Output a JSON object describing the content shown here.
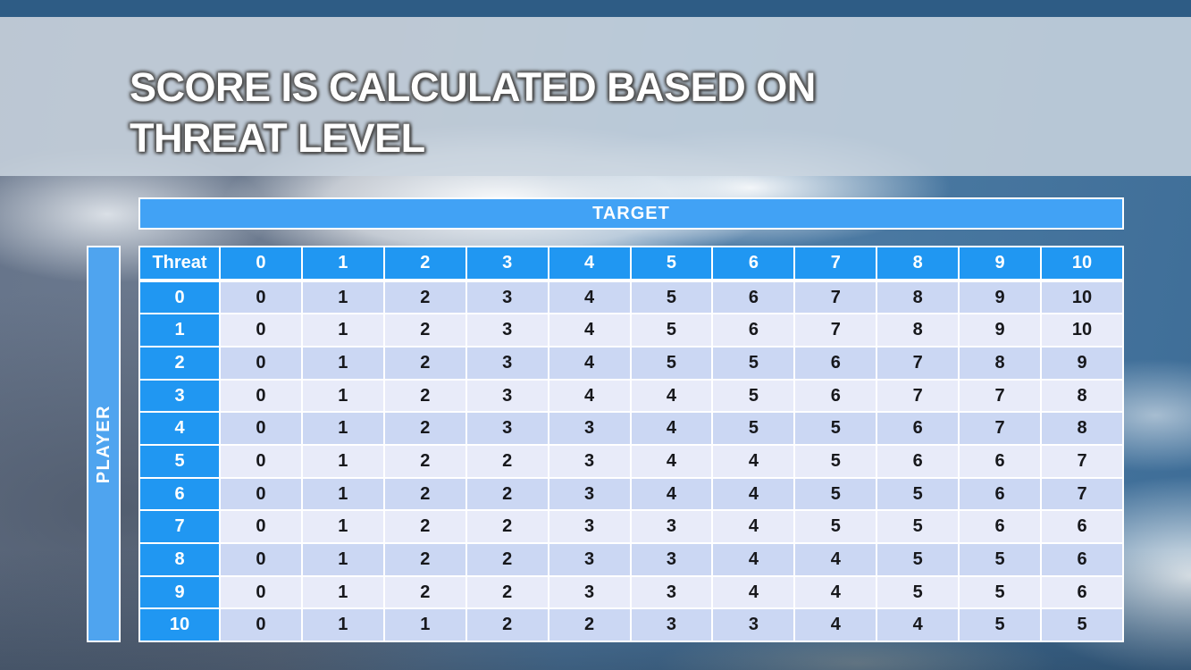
{
  "slide": {
    "title_line1": "SCORE IS CALCULATED BASED ON",
    "title_line2": "THREAT LEVEL"
  },
  "chart_data": {
    "type": "table",
    "title": "Score is calculated based on threat level",
    "x_axis_label": "TARGET",
    "y_axis_label": "PLAYER",
    "corner_label": "Threat",
    "column_headers": [
      "0",
      "1",
      "2",
      "3",
      "4",
      "5",
      "6",
      "7",
      "8",
      "9",
      "10"
    ],
    "row_headers": [
      "0",
      "1",
      "2",
      "3",
      "4",
      "5",
      "6",
      "7",
      "8",
      "9",
      "10"
    ],
    "values": [
      [
        0,
        1,
        2,
        3,
        4,
        5,
        6,
        7,
        8,
        9,
        10
      ],
      [
        0,
        1,
        2,
        3,
        4,
        5,
        6,
        7,
        8,
        9,
        10
      ],
      [
        0,
        1,
        2,
        3,
        4,
        5,
        5,
        6,
        7,
        8,
        9
      ],
      [
        0,
        1,
        2,
        3,
        4,
        4,
        5,
        6,
        7,
        7,
        8
      ],
      [
        0,
        1,
        2,
        3,
        3,
        4,
        5,
        5,
        6,
        7,
        8
      ],
      [
        0,
        1,
        2,
        2,
        3,
        4,
        4,
        5,
        6,
        6,
        7
      ],
      [
        0,
        1,
        2,
        2,
        3,
        4,
        4,
        5,
        5,
        6,
        7
      ],
      [
        0,
        1,
        2,
        2,
        3,
        3,
        4,
        5,
        5,
        6,
        6
      ],
      [
        0,
        1,
        2,
        2,
        3,
        3,
        4,
        4,
        5,
        5,
        6
      ],
      [
        0,
        1,
        2,
        2,
        3,
        3,
        4,
        4,
        5,
        5,
        6
      ],
      [
        0,
        1,
        1,
        2,
        2,
        3,
        3,
        4,
        4,
        5,
        5
      ]
    ]
  },
  "colors": {
    "top_bar": "#2E5C85",
    "title_band": "#CBD5E0",
    "header_blue": "#2097F2",
    "target_bar_blue": "#41A2F5",
    "player_bar_blue": "#4FA4EF",
    "row_even": "#CBD7F3",
    "row_odd": "#E8EBF9",
    "cell_text": "#17181C",
    "grid_white": "#FFFFFF"
  }
}
